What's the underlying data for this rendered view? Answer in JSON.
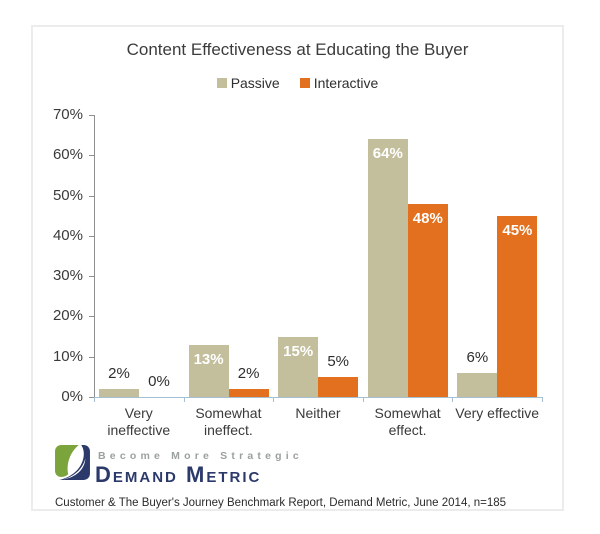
{
  "chart_data": {
    "type": "bar",
    "title": "Content Effectiveness at Educating the Buyer",
    "categories": [
      "Very ineffective",
      "Somewhat\nineffect.",
      "Neither",
      "Somewhat\neffect.",
      "Very effective"
    ],
    "series": [
      {
        "name": "Passive",
        "color": "#C3BE9C",
        "values": [
          2,
          13,
          15,
          64,
          6
        ]
      },
      {
        "name": "Interactive",
        "color": "#E2701E",
        "values": [
          0,
          2,
          5,
          48,
          45
        ]
      }
    ],
    "data_labels": {
      "Passive": [
        "2%",
        "13%",
        "15%",
        "64%",
        "6%"
      ],
      "Interactive": [
        "0%",
        "2%",
        "5%",
        "48%",
        "45%"
      ]
    },
    "ylabel_ticks": [
      "0%",
      "10%",
      "20%",
      "30%",
      "40%",
      "50%",
      "60%",
      "70%"
    ],
    "ylim": [
      0,
      70
    ],
    "ytick_step": 10,
    "xlabel": "",
    "ylabel": "",
    "grid": false,
    "legend_position": "top",
    "label_inside_color": "#FFFFFF",
    "label_outside_color": "#2E2E2E",
    "axis_line_color": "#8F8F8F",
    "baseline_color": "#A5BFD3"
  },
  "branding": {
    "tagline": "Become More Strategic",
    "wordmark": "Demand Metric",
    "logo_icon": "demand-metric-logo",
    "colors": {
      "green": "#7CA43D",
      "navy": "#2C3A6B",
      "tagline_gray": "#9BA0A0"
    }
  },
  "footer": {
    "text": "Customer & The Buyer's Journey Benchmark Report, Demand Metric, June 2014, n=185"
  }
}
